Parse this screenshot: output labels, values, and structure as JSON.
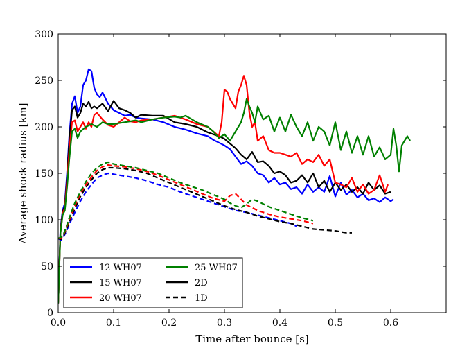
{
  "chart_data": {
    "type": "line",
    "title": "",
    "xlabel": "Time after bounce [s]",
    "ylabel": "Average shock radius [km]",
    "xlim": [
      0.0,
      0.7
    ],
    "ylim": [
      0,
      300
    ],
    "xticks": [
      0.0,
      0.1,
      0.2,
      0.3,
      0.4,
      0.5,
      0.6
    ],
    "xtick_labels": [
      "0.0",
      "0.1",
      "0.2",
      "0.3",
      "0.4",
      "0.5",
      "0.6"
    ],
    "yticks": [
      0,
      50,
      100,
      150,
      200,
      250,
      300
    ],
    "ytick_labels": [
      "0",
      "50",
      "100",
      "150",
      "200",
      "250",
      "300"
    ],
    "grid": false,
    "legend": {
      "placement": "bottom-left",
      "entries": [
        {
          "label": "12 WH07",
          "color": "#0000ff",
          "style": "solid"
        },
        {
          "label": "15 WH07",
          "color": "#000000",
          "style": "solid"
        },
        {
          "label": "20 WH07",
          "color": "#ff0000",
          "style": "solid"
        },
        {
          "label": "25 WH07",
          "color": "#008000",
          "style": "solid"
        },
        {
          "label": "2D",
          "color": "#000000",
          "style": "solid"
        },
        {
          "label": "1D",
          "color": "#000000",
          "style": "dashed"
        }
      ]
    },
    "series": [
      {
        "name": "12 WH07 2D",
        "color": "#0000ff",
        "style": "solid",
        "x": [
          0.0,
          0.004,
          0.008,
          0.012,
          0.016,
          0.02,
          0.025,
          0.03,
          0.035,
          0.04,
          0.045,
          0.05,
          0.055,
          0.06,
          0.065,
          0.07,
          0.075,
          0.08,
          0.09,
          0.1,
          0.11,
          0.12,
          0.13,
          0.14,
          0.15,
          0.17,
          0.19,
          0.21,
          0.23,
          0.25,
          0.27,
          0.28,
          0.29,
          0.3,
          0.31,
          0.32,
          0.33,
          0.34,
          0.35,
          0.36,
          0.37,
          0.38,
          0.39,
          0.4,
          0.41,
          0.42,
          0.43,
          0.44,
          0.45,
          0.46,
          0.47,
          0.48,
          0.49,
          0.5,
          0.51,
          0.52,
          0.53,
          0.54,
          0.55,
          0.56,
          0.57,
          0.58,
          0.59,
          0.6,
          0.605
        ],
        "y": [
          10,
          90,
          110,
          118,
          150,
          190,
          225,
          233,
          215,
          222,
          245,
          250,
          262,
          260,
          242,
          235,
          232,
          237,
          225,
          218,
          215,
          212,
          213,
          210,
          209,
          208,
          205,
          200,
          197,
          193,
          190,
          186,
          183,
          180,
          176,
          168,
          160,
          163,
          158,
          150,
          148,
          140,
          145,
          138,
          140,
          133,
          135,
          128,
          138,
          130,
          135,
          130,
          147,
          125,
          140,
          127,
          132,
          124,
          128,
          121,
          123,
          119,
          124,
          120,
          122
        ]
      },
      {
        "name": "15 WH07 2D",
        "color": "#000000",
        "style": "solid",
        "x": [
          0.0,
          0.004,
          0.008,
          0.012,
          0.016,
          0.02,
          0.025,
          0.03,
          0.035,
          0.04,
          0.045,
          0.05,
          0.055,
          0.06,
          0.065,
          0.07,
          0.08,
          0.09,
          0.1,
          0.11,
          0.12,
          0.13,
          0.14,
          0.15,
          0.17,
          0.19,
          0.21,
          0.23,
          0.25,
          0.27,
          0.28,
          0.29,
          0.3,
          0.31,
          0.32,
          0.33,
          0.34,
          0.35,
          0.36,
          0.37,
          0.38,
          0.39,
          0.4,
          0.41,
          0.42,
          0.43,
          0.44,
          0.45,
          0.46,
          0.47,
          0.48,
          0.49,
          0.5,
          0.51,
          0.52,
          0.53,
          0.54,
          0.55,
          0.56,
          0.57,
          0.58,
          0.59,
          0.6
        ],
        "y": [
          10,
          88,
          108,
          115,
          145,
          185,
          218,
          222,
          210,
          215,
          225,
          222,
          227,
          220,
          222,
          220,
          225,
          217,
          228,
          220,
          218,
          215,
          210,
          213,
          212,
          212,
          205,
          203,
          200,
          194,
          192,
          190,
          187,
          182,
          177,
          170,
          165,
          173,
          162,
          163,
          158,
          150,
          152,
          148,
          140,
          142,
          148,
          140,
          150,
          135,
          142,
          130,
          140,
          132,
          138,
          130,
          135,
          128,
          140,
          132,
          137,
          128,
          130
        ]
      },
      {
        "name": "20 WH07 2D",
        "color": "#ff0000",
        "style": "solid",
        "x": [
          0.0,
          0.004,
          0.008,
          0.012,
          0.016,
          0.02,
          0.025,
          0.03,
          0.035,
          0.04,
          0.045,
          0.05,
          0.055,
          0.06,
          0.065,
          0.07,
          0.08,
          0.09,
          0.1,
          0.11,
          0.12,
          0.13,
          0.14,
          0.15,
          0.17,
          0.19,
          0.21,
          0.23,
          0.25,
          0.27,
          0.28,
          0.29,
          0.295,
          0.3,
          0.305,
          0.31,
          0.315,
          0.32,
          0.325,
          0.33,
          0.335,
          0.34,
          0.345,
          0.35,
          0.355,
          0.36,
          0.37,
          0.38,
          0.39,
          0.4,
          0.41,
          0.42,
          0.43,
          0.44,
          0.45,
          0.46,
          0.47,
          0.48,
          0.49,
          0.5,
          0.51,
          0.52,
          0.53,
          0.54,
          0.55,
          0.56,
          0.57,
          0.58,
          0.59,
          0.595
        ],
        "y": [
          10,
          86,
          106,
          113,
          140,
          175,
          205,
          207,
          195,
          200,
          205,
          198,
          205,
          200,
          213,
          215,
          208,
          202,
          200,
          205,
          210,
          206,
          205,
          207,
          208,
          210,
          212,
          208,
          203,
          200,
          195,
          190,
          205,
          240,
          238,
          230,
          225,
          220,
          238,
          245,
          255,
          245,
          215,
          200,
          205,
          185,
          190,
          175,
          172,
          172,
          170,
          168,
          172,
          160,
          165,
          162,
          170,
          158,
          165,
          140,
          138,
          135,
          145,
          130,
          138,
          128,
          132,
          148,
          130,
          138
        ]
      },
      {
        "name": "25 WH07 2D",
        "color": "#008000",
        "style": "solid",
        "x": [
          0.0,
          0.004,
          0.008,
          0.012,
          0.016,
          0.02,
          0.025,
          0.03,
          0.035,
          0.04,
          0.05,
          0.06,
          0.07,
          0.08,
          0.09,
          0.1,
          0.11,
          0.12,
          0.13,
          0.14,
          0.15,
          0.17,
          0.19,
          0.21,
          0.22,
          0.23,
          0.25,
          0.27,
          0.28,
          0.29,
          0.3,
          0.31,
          0.32,
          0.33,
          0.335,
          0.34,
          0.345,
          0.35,
          0.355,
          0.36,
          0.365,
          0.37,
          0.38,
          0.39,
          0.4,
          0.41,
          0.42,
          0.43,
          0.44,
          0.45,
          0.46,
          0.47,
          0.48,
          0.49,
          0.5,
          0.51,
          0.52,
          0.53,
          0.54,
          0.55,
          0.56,
          0.57,
          0.58,
          0.59,
          0.6,
          0.605,
          0.61,
          0.615,
          0.62,
          0.625,
          0.63,
          0.635
        ],
        "y": [
          10,
          85,
          105,
          110,
          135,
          165,
          195,
          198,
          188,
          195,
          200,
          203,
          200,
          205,
          203,
          203,
          204,
          205,
          206,
          207,
          205,
          208,
          210,
          211,
          210,
          212,
          205,
          200,
          195,
          188,
          192,
          185,
          195,
          205,
          215,
          230,
          222,
          215,
          205,
          222,
          215,
          208,
          212,
          195,
          210,
          195,
          213,
          200,
          190,
          205,
          185,
          200,
          195,
          180,
          205,
          175,
          195,
          172,
          190,
          170,
          190,
          168,
          178,
          165,
          170,
          198,
          180,
          152,
          180,
          185,
          190,
          185
        ]
      },
      {
        "name": "12 WH07 1D",
        "color": "#0000ff",
        "style": "dashed",
        "x": [
          0.0,
          0.005,
          0.01,
          0.015,
          0.02,
          0.03,
          0.04,
          0.05,
          0.06,
          0.07,
          0.08,
          0.09,
          0.1,
          0.12,
          0.14,
          0.16,
          0.18,
          0.2,
          0.22,
          0.24,
          0.26,
          0.28,
          0.3,
          0.32,
          0.34,
          0.36,
          0.38,
          0.4,
          0.42,
          0.43
        ],
        "y": [
          80,
          78,
          82,
          88,
          95,
          108,
          120,
          130,
          138,
          145,
          148,
          150,
          149,
          147,
          145,
          142,
          138,
          135,
          130,
          126,
          122,
          118,
          114,
          110,
          108,
          105,
          102,
          99,
          96,
          93
        ]
      },
      {
        "name": "15 WH07 1D",
        "color": "#000000",
        "style": "dashed",
        "x": [
          0.0,
          0.005,
          0.01,
          0.015,
          0.02,
          0.03,
          0.04,
          0.05,
          0.06,
          0.07,
          0.08,
          0.09,
          0.1,
          0.12,
          0.14,
          0.16,
          0.18,
          0.2,
          0.22,
          0.24,
          0.26,
          0.28,
          0.3,
          0.32,
          0.34,
          0.36,
          0.38,
          0.4,
          0.42,
          0.44,
          0.46,
          0.48,
          0.5,
          0.52,
          0.53
        ],
        "y": [
          80,
          79,
          83,
          90,
          98,
          112,
          125,
          135,
          143,
          150,
          154,
          156,
          156,
          155,
          153,
          150,
          145,
          140,
          135,
          130,
          125,
          120,
          115,
          111,
          108,
          104,
          101,
          98,
          96,
          93,
          90,
          89,
          88,
          86,
          86
        ]
      },
      {
        "name": "20 WH07 1D",
        "color": "#ff0000",
        "style": "dashed",
        "x": [
          0.0,
          0.005,
          0.01,
          0.015,
          0.02,
          0.03,
          0.04,
          0.05,
          0.06,
          0.07,
          0.08,
          0.09,
          0.1,
          0.12,
          0.14,
          0.16,
          0.18,
          0.2,
          0.22,
          0.24,
          0.26,
          0.28,
          0.3,
          0.31,
          0.32,
          0.33,
          0.34,
          0.36,
          0.38,
          0.4,
          0.42,
          0.44,
          0.46
        ],
        "y": [
          80,
          80,
          84,
          92,
          100,
          115,
          128,
          138,
          146,
          153,
          157,
          159,
          158,
          157,
          155,
          152,
          148,
          143,
          138,
          133,
          128,
          123,
          120,
          126,
          128,
          122,
          116,
          110,
          106,
          103,
          101,
          99,
          96
        ]
      },
      {
        "name": "25 WH07 1D",
        "color": "#008000",
        "style": "dashed",
        "x": [
          0.0,
          0.005,
          0.01,
          0.015,
          0.02,
          0.03,
          0.04,
          0.05,
          0.06,
          0.07,
          0.08,
          0.09,
          0.1,
          0.12,
          0.14,
          0.16,
          0.18,
          0.2,
          0.22,
          0.24,
          0.26,
          0.28,
          0.3,
          0.31,
          0.32,
          0.33,
          0.34,
          0.35,
          0.36,
          0.38,
          0.4,
          0.42,
          0.44,
          0.46
        ],
        "y": [
          80,
          81,
          85,
          93,
          102,
          118,
          130,
          141,
          150,
          156,
          160,
          162,
          160,
          158,
          156,
          153,
          150,
          145,
          140,
          136,
          132,
          127,
          122,
          118,
          115,
          113,
          117,
          122,
          120,
          114,
          110,
          106,
          102,
          99
        ]
      }
    ]
  }
}
